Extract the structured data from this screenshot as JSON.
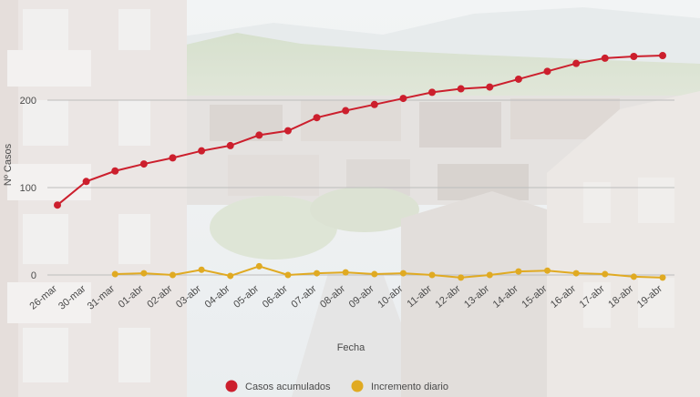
{
  "chart_data": {
    "type": "line",
    "xlabel": "Fecha",
    "ylabel": "Nº Casos",
    "categories": [
      "26-mar",
      "30-mar",
      "31-mar",
      "01-abr",
      "02-abr",
      "03-abr",
      "04-abr",
      "05-abr",
      "06-abr",
      "07-abr",
      "08-abr",
      "09-abr",
      "10-abr",
      "11-abr",
      "12-abr",
      "13-abr",
      "14-abr",
      "15-abr",
      "16-abr",
      "17-abr",
      "18-abr",
      "19-abr"
    ],
    "y_ticks": [
      0,
      100,
      200
    ],
    "ylim": [
      -20,
      260
    ],
    "grid": true,
    "legend_position": "bottom",
    "series": [
      {
        "name": "Casos acumulados",
        "color": "#cc1f2d",
        "values": [
          80,
          107,
          119,
          127,
          134,
          142,
          148,
          160,
          165,
          180,
          188,
          195,
          202,
          209,
          213,
          215,
          224,
          233,
          242,
          248,
          250,
          251
        ]
      },
      {
        "name": "Incremento diario",
        "color": "#e0aa22",
        "values": [
          5,
          3,
          1,
          2,
          0,
          6,
          -1,
          10,
          0,
          2,
          3,
          1,
          2,
          0,
          -3,
          0,
          4,
          5,
          2,
          1,
          -2,
          -3
        ]
      }
    ]
  }
}
